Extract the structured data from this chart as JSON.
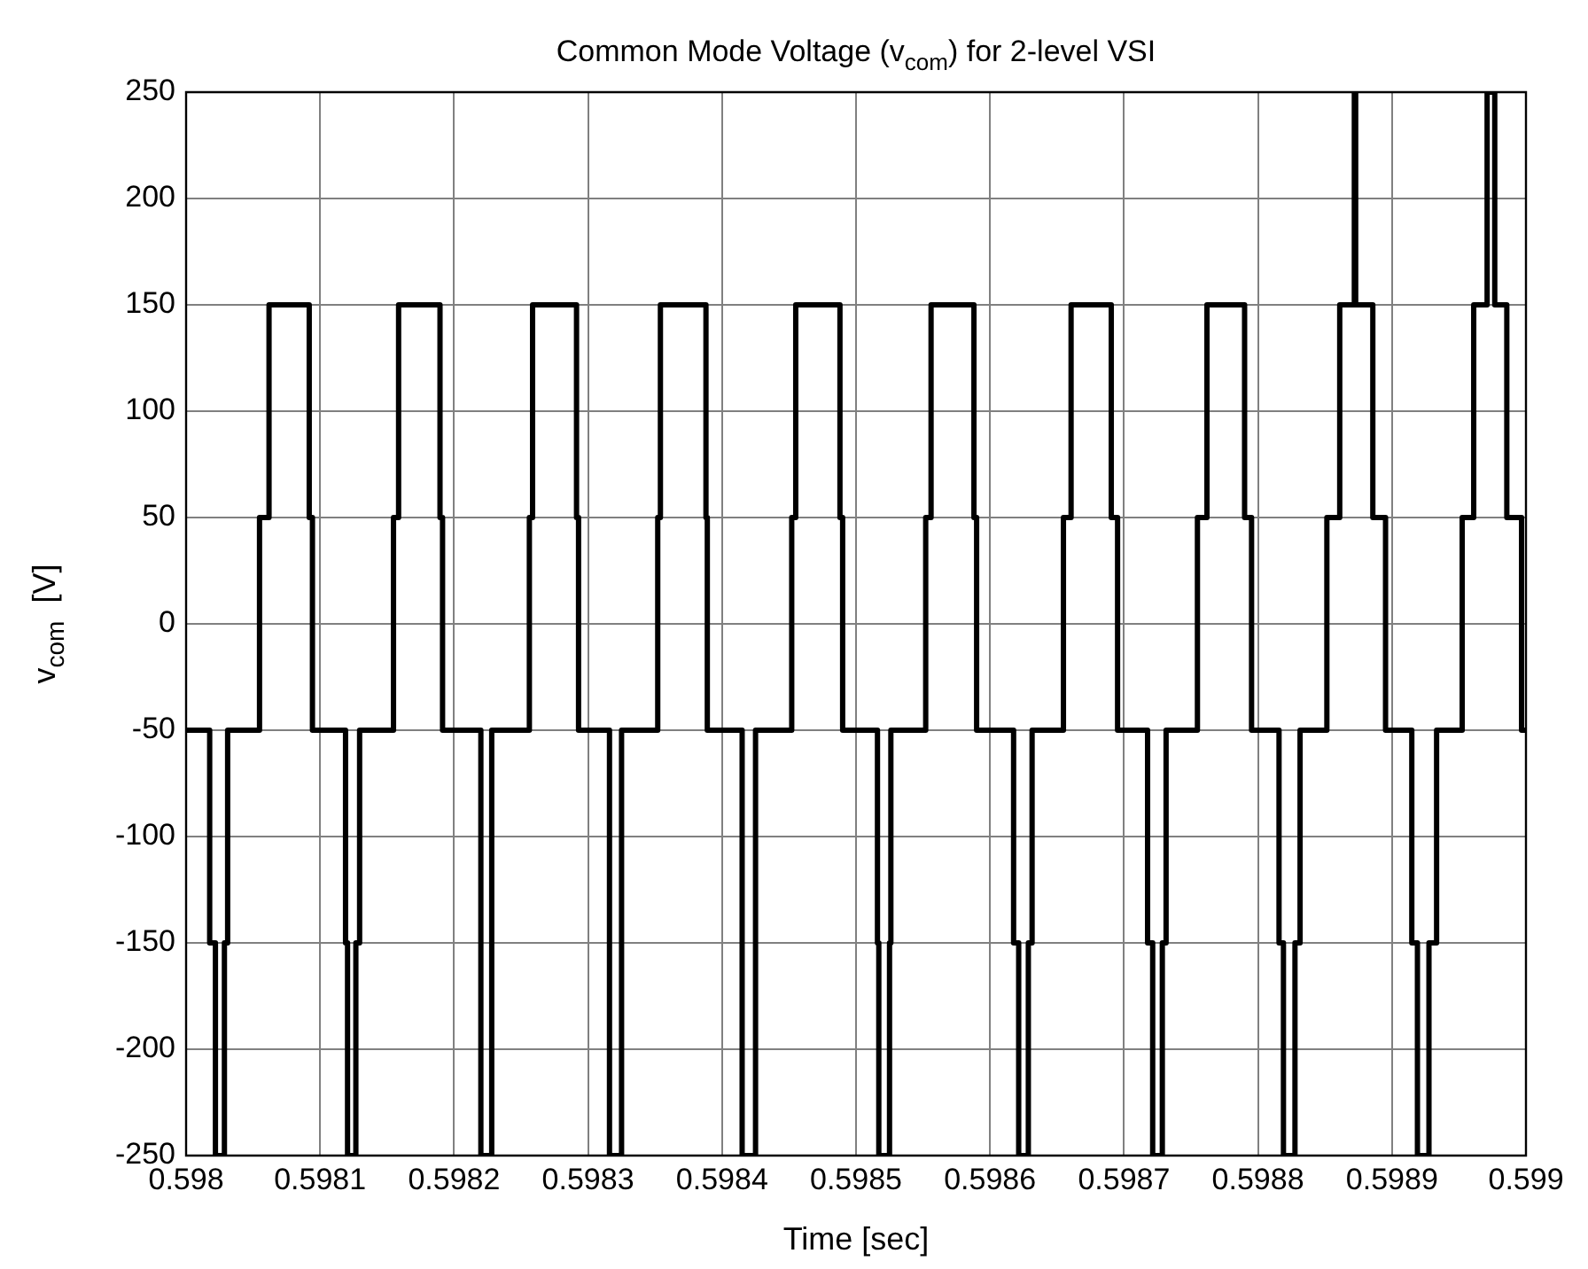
{
  "chart_data": {
    "type": "step",
    "title": "Common Mode Voltage (v$_{com}$) for 2-level VSI",
    "xlabel": "Time [sec]",
    "ylabel": "v$_{com}$  [V]",
    "x": [
      0.598,
      0.5980176,
      0.5980219,
      0.5980286,
      0.598031,
      0.5980548,
      0.5980619,
      0.5980919,
      0.5980943,
      0.598119,
      0.5981205,
      0.5981267,
      0.5981295,
      0.5981548,
      0.5981586,
      0.5981895,
      0.5981914,
      0.59822,
      0.5982281,
      0.5982562,
      0.5982586,
      0.5982914,
      0.5982929,
      0.598316,
      0.598325,
      0.598352,
      0.598354,
      0.598388,
      0.598389,
      0.598415,
      0.598425,
      0.598452,
      0.598455,
      0.598488,
      0.59849,
      0.598516,
      0.598517,
      0.598525,
      0.598526,
      0.598552,
      0.598556,
      0.598588,
      0.59859,
      0.5986176,
      0.5986214,
      0.5986286,
      0.5986314,
      0.5986548,
      0.5986605,
      0.5986905,
      0.5986952,
      0.5987176,
      0.5987214,
      0.5987286,
      0.5987314,
      0.5987548,
      0.5987619,
      0.59879,
      0.5987952,
      0.5988157,
      0.598819,
      0.5988276,
      0.5988314,
      0.5988514,
      0.598861,
      0.5988719,
      0.5988729,
      0.5988857,
      0.5988952,
      0.5989148,
      0.598919,
      0.5989276,
      0.5989333,
      0.5989524,
      0.598961,
      0.598971,
      0.5989767,
      0.5989857,
      0.5989967,
      0.599
    ],
    "values": [
      -50,
      -150,
      -250,
      -150,
      -50,
      50,
      150,
      50,
      -50,
      -150,
      -250,
      -150,
      -50,
      50,
      150,
      50,
      -50,
      -250,
      -50,
      50,
      150,
      50,
      -50,
      -250,
      -50,
      50,
      150,
      50,
      -50,
      -250,
      -50,
      50,
      150,
      50,
      -50,
      -150,
      -250,
      -150,
      -50,
      50,
      150,
      50,
      -50,
      -150,
      -250,
      -150,
      -50,
      50,
      150,
      50,
      -50,
      -150,
      -250,
      -150,
      -50,
      50,
      150,
      50,
      -50,
      -150,
      -250,
      -150,
      -50,
      50,
      150,
      250,
      150,
      50,
      -50,
      -150,
      -250,
      -150,
      -50,
      50,
      150,
      250,
      150,
      50,
      -50,
      -50
    ],
    "color": "#000000",
    "marker": "none",
    "xlim": [
      0.598,
      0.599
    ],
    "xticks": [
      0.598,
      0.5981,
      0.5982,
      0.5983,
      0.5984,
      0.5985,
      0.5986,
      0.5987,
      0.5988,
      0.5989,
      0.599
    ],
    "ylim": [
      -250,
      250
    ],
    "yticks": [
      -250,
      -200,
      -150,
      -100,
      -50,
      0,
      50,
      100,
      150,
      200,
      250
    ],
    "grid": true
  }
}
